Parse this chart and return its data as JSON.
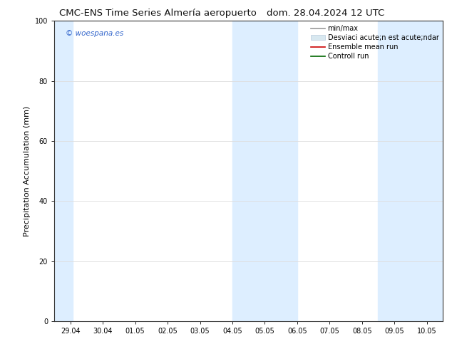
{
  "title_left": "CMC-ENS Time Series Almería aeropuerto",
  "title_right": "dom. 28.04.2024 12 UTC",
  "ylabel": "Precipitation Accumulation (mm)",
  "ylim": [
    0,
    100
  ],
  "yticks": [
    0,
    20,
    40,
    60,
    80,
    100
  ],
  "xtick_labels": [
    "29.04",
    "30.04",
    "01.05",
    "02.05",
    "03.05",
    "04.05",
    "05.05",
    "06.05",
    "07.05",
    "08.05",
    "09.05",
    "10.05"
  ],
  "watermark": "© woespana.es",
  "legend_labels": [
    "min/max",
    "Desviaci acute;n est acute;ndar",
    "Ensemble mean run",
    "Controll run"
  ],
  "shaded_bands": [
    {
      "xstart": -0.5,
      "xend": 0.08
    },
    {
      "xstart": 5.0,
      "xend": 7.0
    },
    {
      "xstart": 9.5,
      "xend": 11.5
    }
  ],
  "band_color": "#ddeeff",
  "background_color": "#ffffff",
  "grid_color": "#dddddd",
  "title_fontsize": 9.5,
  "ylabel_fontsize": 8,
  "tick_fontsize": 7,
  "legend_fontsize": 7,
  "watermark_fontsize": 7.5,
  "watermark_color": "#3366cc"
}
